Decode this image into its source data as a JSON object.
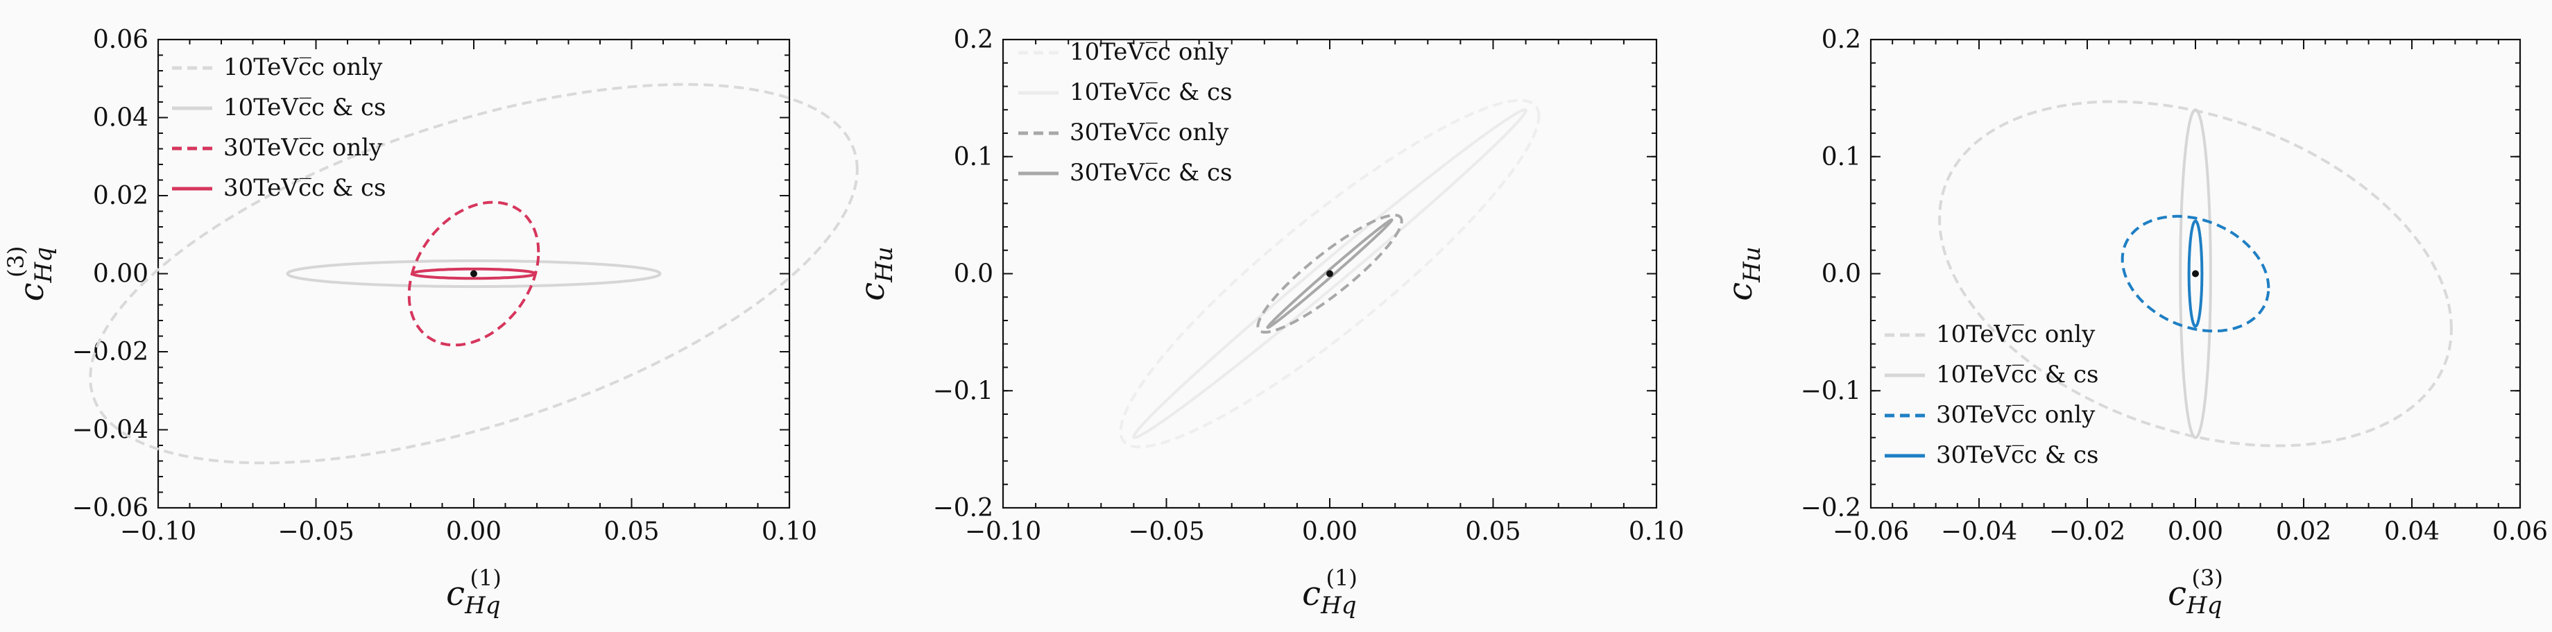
{
  "chart_data": [
    {
      "type": "line",
      "xlabel": "c_{Hq}^{(1)}",
      "ylabel": "c_{Hq}^{(3)}",
      "xlim": [
        -0.1,
        0.1
      ],
      "ylim": [
        -0.06,
        0.06
      ],
      "xticks": [
        -0.1,
        -0.05,
        0.0,
        0.05,
        0.1
      ],
      "xtick_labels": [
        "−0.10",
        "−0.05",
        "0.00",
        "0.05",
        "0.10"
      ],
      "yticks": [
        -0.06,
        -0.04,
        -0.02,
        0.0,
        0.02,
        0.04,
        0.06
      ],
      "ytick_labels": [
        "−0.06",
        "−0.04",
        "−0.02",
        "0.00",
        "0.02",
        "0.04",
        "0.06"
      ],
      "legend_position": "top-left",
      "best_fit_point": [
        0,
        0
      ],
      "series": [
        {
          "name": "10TeVc̅c only",
          "style": "dashed",
          "color": "#d9d9d9",
          "ellipse": {
            "center": [
              0,
              0
            ],
            "x_range": [
              -0.1215,
              0.1215
            ],
            "y_range": [
              -0.0485,
              0.0485
            ],
            "correlation": 0.55
          }
        },
        {
          "name": "10TeVc̅c & cs",
          "style": "solid",
          "color": "#d6d6d6",
          "ellipse": {
            "center": [
              0,
              0
            ],
            "x_range": [
              -0.059,
              0.059
            ],
            "y_range": [
              -0.0033,
              0.0033
            ],
            "correlation": 0.0
          }
        },
        {
          "name": "30TeVc̅c only",
          "style": "dashed",
          "color": "#d6365d",
          "ellipse": {
            "center": [
              0,
              0
            ],
            "x_range": [
              -0.0205,
              0.0205
            ],
            "y_range": [
              -0.0183,
              0.0183
            ],
            "correlation": 0.3
          }
        },
        {
          "name": "30TeVc̅c & cs",
          "style": "solid",
          "color": "#d6365d",
          "ellipse": {
            "center": [
              0,
              0
            ],
            "x_range": [
              -0.0195,
              0.0195
            ],
            "y_range": [
              -0.0012,
              0.0012
            ],
            "correlation": 0.0
          }
        }
      ]
    },
    {
      "type": "line",
      "xlabel": "c_{Hq}^{(1)}",
      "ylabel": "c_{Hu}",
      "xlim": [
        -0.1,
        0.1
      ],
      "ylim": [
        -0.2,
        0.2
      ],
      "xticks": [
        -0.1,
        -0.05,
        0.0,
        0.05,
        0.1
      ],
      "xtick_labels": [
        "−0.10",
        "−0.05",
        "0.00",
        "0.05",
        "0.10"
      ],
      "yticks": [
        -0.2,
        -0.1,
        0.0,
        0.1,
        0.2
      ],
      "ytick_labels": [
        "−0.2",
        "−0.1",
        "0.0",
        "0.1",
        "0.2"
      ],
      "legend_position": "top-left",
      "best_fit_point": [
        0,
        0
      ],
      "series": [
        {
          "name": "10TeVc̅c only",
          "style": "dashed",
          "color": "#eeeeee",
          "ellipse": {
            "center": [
              0,
              0
            ],
            "x_range": [
              -0.064,
              0.064
            ],
            "y_range": [
              -0.148,
              0.148
            ],
            "correlation": 0.91
          }
        },
        {
          "name": "10TeVc̅c & cs",
          "style": "solid",
          "color": "#ebebeb",
          "ellipse": {
            "center": [
              0,
              0
            ],
            "x_range": [
              -0.06,
              0.06
            ],
            "y_range": [
              -0.14,
              0.14
            ],
            "correlation": 0.995
          }
        },
        {
          "name": "30TeVc̅c only",
          "style": "dashed",
          "color": "#a8a8a8",
          "ellipse": {
            "center": [
              0,
              0
            ],
            "x_range": [
              -0.022,
              0.022
            ],
            "y_range": [
              -0.05,
              0.05
            ],
            "correlation": 0.9
          }
        },
        {
          "name": "30TeVc̅c & cs",
          "style": "solid",
          "color": "#a8a8a8",
          "ellipse": {
            "center": [
              0,
              0
            ],
            "x_range": [
              -0.019,
              0.019
            ],
            "y_range": [
              -0.046,
              0.046
            ],
            "correlation": 0.997
          }
        }
      ]
    },
    {
      "type": "line",
      "xlabel": "c_{Hq}^{(3)}",
      "ylabel": "c_{Hu}",
      "xlim": [
        -0.06,
        0.06
      ],
      "ylim": [
        -0.2,
        0.2
      ],
      "xticks": [
        -0.06,
        -0.04,
        -0.02,
        0.0,
        0.02,
        0.04,
        0.06
      ],
      "xtick_labels": [
        "−0.06",
        "−0.04",
        "−0.02",
        "0.00",
        "0.02",
        "0.04",
        "0.06"
      ],
      "yticks": [
        -0.2,
        -0.1,
        0.0,
        0.1,
        0.2
      ],
      "ytick_labels": [
        "−0.2",
        "−0.1",
        "0.0",
        "0.1",
        "0.2"
      ],
      "legend_position": "bottom-left",
      "best_fit_point": [
        0,
        0
      ],
      "series": [
        {
          "name": "10TeVc̅c only",
          "style": "dashed",
          "color": "#d9d9d9",
          "ellipse": {
            "center": [
              0,
              0
            ],
            "x_range": [
              -0.0473,
              0.0473
            ],
            "y_range": [
              -0.147,
              0.147
            ],
            "correlation": -0.32
          }
        },
        {
          "name": "10TeVc̅c & cs",
          "style": "solid",
          "color": "#d6d6d6",
          "ellipse": {
            "center": [
              0,
              0
            ],
            "x_range": [
              -0.0028,
              0.0028
            ],
            "y_range": [
              -0.14,
              0.14
            ],
            "correlation": 0.0
          }
        },
        {
          "name": "30TeVc̅c only",
          "style": "dashed",
          "color": "#1f7fc4",
          "ellipse": {
            "center": [
              0,
              0
            ],
            "x_range": [
              -0.0135,
              0.0135
            ],
            "y_range": [
              -0.049,
              0.049
            ],
            "correlation": -0.25
          }
        },
        {
          "name": "30TeVc̅c & cs",
          "style": "solid",
          "color": "#1f7fc4",
          "ellipse": {
            "center": [
              0,
              0
            ],
            "x_range": [
              -0.0012,
              0.0012
            ],
            "y_range": [
              -0.045,
              0.045
            ],
            "correlation": 0.0
          }
        }
      ]
    }
  ]
}
